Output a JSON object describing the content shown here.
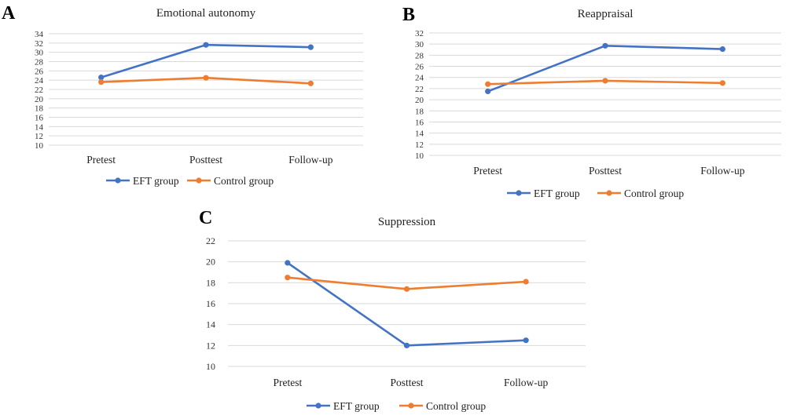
{
  "chart_data": [
    {
      "panel": "A",
      "type": "line",
      "title": "Emotional autonomy",
      "categories": [
        "Pretest",
        "Posttest",
        "Follow-up"
      ],
      "ylim": [
        10,
        34
      ],
      "yticks": [
        10,
        12,
        14,
        16,
        18,
        20,
        22,
        24,
        26,
        28,
        30,
        32,
        34
      ],
      "grid": true,
      "legend": "bottom",
      "series": [
        {
          "name": "EFT group",
          "color": "#4472c4",
          "values": [
            24.6,
            31.6,
            31.1
          ]
        },
        {
          "name": "Control group",
          "color": "#ed7d31",
          "values": [
            23.6,
            24.5,
            23.3
          ]
        }
      ]
    },
    {
      "panel": "B",
      "type": "line",
      "title": "Reappraisal",
      "categories": [
        "Pretest",
        "Posttest",
        "Follow-up"
      ],
      "ylim": [
        10,
        32
      ],
      "yticks": [
        10,
        12,
        14,
        16,
        18,
        20,
        22,
        24,
        26,
        28,
        30,
        32
      ],
      "grid": true,
      "legend": "bottom",
      "series": [
        {
          "name": "EFT group",
          "color": "#4472c4",
          "values": [
            21.5,
            29.7,
            29.1
          ]
        },
        {
          "name": "Control group",
          "color": "#ed7d31",
          "values": [
            22.8,
            23.4,
            23.0
          ]
        }
      ]
    },
    {
      "panel": "C",
      "type": "line",
      "title": "Suppression",
      "categories": [
        "Pretest",
        "Posttest",
        "Follow-up"
      ],
      "ylim": [
        10,
        22
      ],
      "yticks": [
        10,
        12,
        14,
        16,
        18,
        20,
        22
      ],
      "grid": true,
      "legend": "bottom",
      "series": [
        {
          "name": "EFT group",
          "color": "#4472c4",
          "values": [
            19.9,
            12.0,
            12.5
          ]
        },
        {
          "name": "Control group",
          "color": "#ed7d31",
          "values": [
            18.5,
            17.4,
            18.1
          ]
        }
      ]
    }
  ]
}
